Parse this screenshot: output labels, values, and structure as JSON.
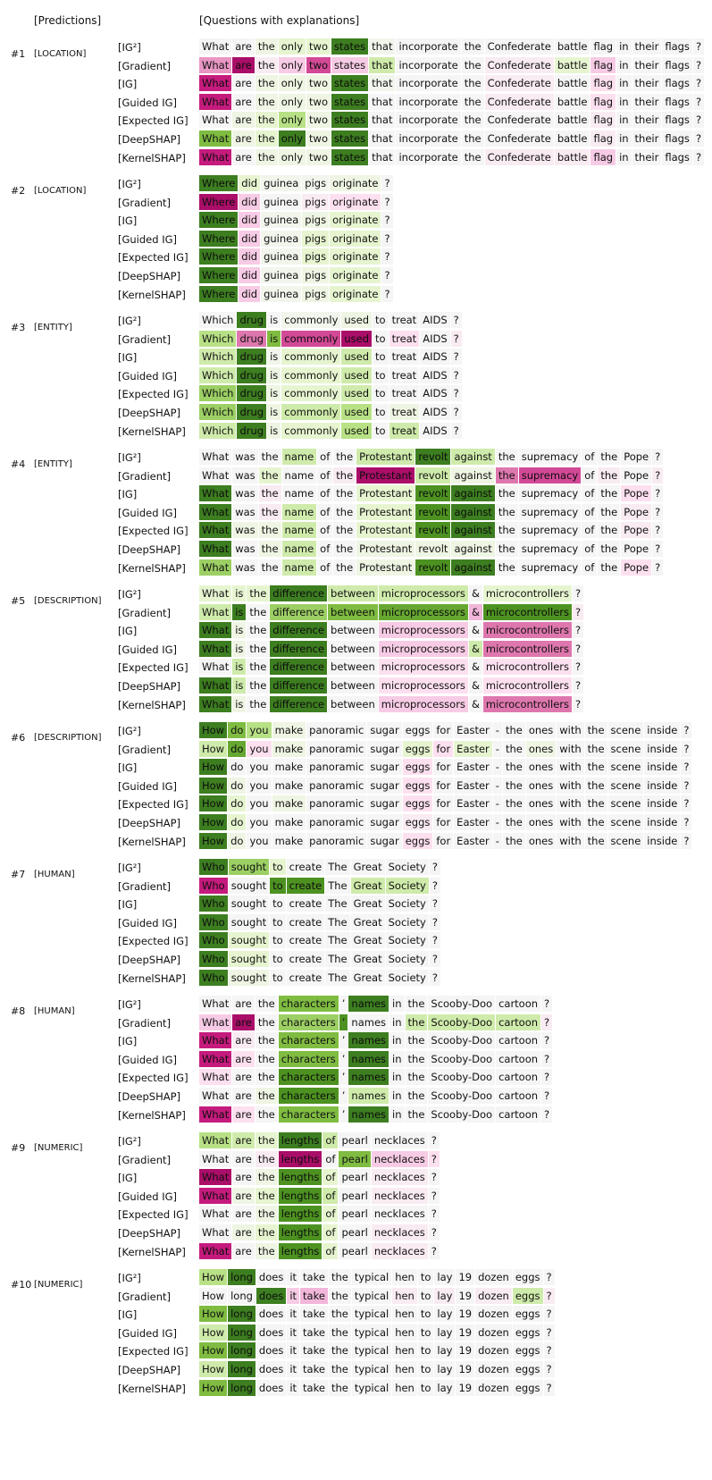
{
  "header": {
    "predictions": "[Predictions]",
    "questions": "[Questions with explanations]"
  },
  "methods": [
    "[IG²]",
    "[Gradient]",
    "[IG]",
    "[Guided IG]",
    "[Expected IG]",
    "[DeepSHAP]",
    "[KernelSHAP]"
  ],
  "legend_colors": {
    "positive": "#2d6a1f",
    "negative": "#a3005a",
    "neutral": "#f5f5f5"
  },
  "blocks": [
    {
      "num": "#1",
      "pred": "[LOCATION]",
      "tokens": [
        "What",
        "are",
        "the",
        "only",
        "two",
        "states",
        "that",
        "incorporate",
        "the",
        "Confederate",
        "battle",
        "flag",
        "in",
        "their",
        "flags",
        "?"
      ],
      "scores": [
        [
          0,
          0,
          0.1,
          0.2,
          0.2,
          0.9,
          0.05,
          0,
          0,
          0,
          0,
          0,
          0,
          0,
          0,
          0
        ],
        [
          -0.5,
          -0.9,
          -0.1,
          -0.3,
          -0.7,
          -0.3,
          0.3,
          0,
          0,
          -0.1,
          0.2,
          -0.3,
          0,
          0,
          0,
          0
        ],
        [
          -0.8,
          0,
          0.1,
          0.1,
          0.1,
          0.9,
          0.05,
          0,
          0,
          -0.1,
          0,
          -0.2,
          0,
          0,
          0,
          0
        ],
        [
          -0.8,
          0,
          0.1,
          0.1,
          0.1,
          0.9,
          0,
          0,
          0,
          -0.1,
          0,
          -0.2,
          0,
          0,
          0,
          0
        ],
        [
          0,
          0.1,
          0.2,
          0.4,
          0.1,
          0.9,
          0,
          0,
          0,
          0,
          0,
          -0.1,
          0,
          0,
          0,
          0
        ],
        [
          0.6,
          0.1,
          0.2,
          0.9,
          0.1,
          0.9,
          0,
          0,
          0,
          0,
          0,
          -0.1,
          0,
          0,
          0,
          0
        ],
        [
          -0.8,
          0,
          0.1,
          0.1,
          0.1,
          0.9,
          0,
          0,
          0,
          -0.1,
          -0.1,
          -0.3,
          0,
          0,
          0,
          0
        ]
      ]
    },
    {
      "num": "#2",
      "pred": "[LOCATION]",
      "tokens": [
        "Where",
        "did",
        "guinea",
        "pigs",
        "originate",
        "?"
      ],
      "scores": [
        [
          0.9,
          0.2,
          0.05,
          0.05,
          0.1,
          0
        ],
        [
          -0.9,
          -0.3,
          0,
          -0.1,
          -0.2,
          0
        ],
        [
          0.9,
          -0.3,
          0.05,
          0.1,
          0.2,
          0
        ],
        [
          0.9,
          -0.3,
          0.05,
          0.2,
          0.2,
          0
        ],
        [
          0.9,
          -0.3,
          0.05,
          0.2,
          0.2,
          0
        ],
        [
          0.9,
          -0.3,
          0.05,
          0.1,
          0.2,
          0
        ],
        [
          0.9,
          -0.3,
          0.05,
          0.1,
          0.2,
          0
        ]
      ]
    },
    {
      "num": "#3",
      "pred": "[ENTITY]",
      "tokens": [
        "Which",
        "drug",
        "is",
        "commonly",
        "used",
        "to",
        "treat",
        "AIDS",
        "?"
      ],
      "scores": [
        [
          0,
          0.9,
          0,
          0.05,
          0.1,
          0,
          0,
          0,
          0
        ],
        [
          0.4,
          -0.6,
          0.6,
          -0.7,
          -0.9,
          0,
          -0.2,
          0,
          -0.1
        ],
        [
          0.3,
          0.9,
          0.05,
          0.2,
          0.3,
          0,
          0,
          0,
          0
        ],
        [
          0.3,
          0.9,
          0.1,
          0.2,
          0.3,
          0,
          0,
          0,
          0
        ],
        [
          0.5,
          0.9,
          0.1,
          0.2,
          0.3,
          0,
          0,
          0,
          0
        ],
        [
          0.5,
          0.9,
          0.1,
          0.3,
          0.4,
          0,
          0.1,
          0,
          0
        ],
        [
          0.3,
          0.9,
          0.1,
          0.2,
          0.4,
          0,
          0.3,
          0,
          0
        ]
      ]
    },
    {
      "num": "#4",
      "pred": "[ENTITY]",
      "tokens": [
        "What",
        "was",
        "the",
        "name",
        "of",
        "the",
        "Protestant",
        "revolt",
        "against",
        "the",
        "supremacy",
        "of",
        "the",
        "Pope",
        "?"
      ],
      "scores": [
        [
          0,
          0,
          0,
          0.3,
          0,
          0,
          0.3,
          0.9,
          0.3,
          0,
          0,
          0,
          0,
          0,
          0
        ],
        [
          0,
          0,
          0.2,
          0,
          0,
          -0.1,
          -0.9,
          0.3,
          0.1,
          -0.6,
          -0.7,
          0,
          -0.1,
          0,
          -0.1
        ],
        [
          0.9,
          0,
          -0.1,
          0,
          0,
          0,
          0.2,
          0.8,
          0.9,
          0,
          0,
          0,
          0,
          -0.2,
          0
        ],
        [
          0.9,
          0,
          -0.1,
          0.3,
          0,
          0,
          0.2,
          0.8,
          0.9,
          0,
          0,
          0,
          0,
          -0.1,
          0
        ],
        [
          0.9,
          0.1,
          0.1,
          0.3,
          0,
          0,
          0.2,
          0.8,
          0.9,
          0,
          0,
          0,
          0,
          -0.1,
          0
        ],
        [
          0.9,
          0,
          0.1,
          0.3,
          0,
          0,
          0.1,
          0.1,
          0.1,
          0,
          0,
          0,
          0,
          0,
          0
        ],
        [
          0.5,
          0,
          0,
          0.3,
          0,
          0,
          0.1,
          0.8,
          0.9,
          0,
          0,
          0,
          0,
          -0.2,
          0
        ]
      ]
    },
    {
      "num": "#5",
      "pred": "[DESCRIPTION]",
      "tokens": [
        "What",
        "is",
        "the",
        "difference",
        "between",
        "microprocessors",
        "&",
        "microcontrollers",
        "?"
      ],
      "scores": [
        [
          0.2,
          0.2,
          0.2,
          0.9,
          0.3,
          0.3,
          0,
          0.2,
          0
        ],
        [
          0.3,
          0.9,
          0,
          0.5,
          0.6,
          0.7,
          -0.4,
          0.8,
          -0.1
        ],
        [
          0.9,
          0.1,
          0,
          0.9,
          0,
          -0.3,
          0,
          -0.6,
          0
        ],
        [
          0.9,
          0.1,
          0,
          0.9,
          0,
          -0.3,
          0.3,
          -0.6,
          0
        ],
        [
          0,
          0.3,
          0,
          0.9,
          0,
          -0.2,
          0,
          -0.2,
          0
        ],
        [
          0.9,
          0.3,
          0,
          0.9,
          0,
          -0.2,
          0,
          -0.2,
          0
        ],
        [
          0.9,
          0.1,
          0,
          0.9,
          0,
          -0.3,
          0,
          -0.6,
          0
        ]
      ]
    },
    {
      "num": "#6",
      "pred": "[DESCRIPTION]",
      "tokens": [
        "How",
        "do",
        "you",
        "make",
        "panoramic",
        "sugar",
        "eggs",
        "for",
        "Easter",
        "-",
        "the",
        "ones",
        "with",
        "the",
        "scene",
        "inside",
        "?"
      ],
      "scores": [
        [
          0.9,
          0.6,
          0.4,
          0.1,
          0,
          0,
          0,
          0,
          0,
          0,
          0,
          0,
          0,
          0,
          0,
          0,
          0
        ],
        [
          0.3,
          0.7,
          -0.2,
          0.1,
          0,
          0,
          0.2,
          -0.2,
          0.2,
          0,
          0,
          0.1,
          0,
          0,
          0,
          0,
          0
        ],
        [
          0.9,
          0,
          0,
          0,
          0,
          0,
          -0.2,
          0,
          0,
          0,
          0,
          0,
          0,
          0,
          0,
          0,
          0
        ],
        [
          0.9,
          0.1,
          0,
          0,
          0,
          0,
          -0.2,
          0,
          0,
          0,
          0,
          0,
          0,
          0,
          0,
          0,
          0
        ],
        [
          0.9,
          0.2,
          0,
          0.1,
          0,
          0,
          -0.2,
          0,
          0,
          0,
          0,
          0,
          0,
          0,
          0,
          0,
          0
        ],
        [
          0.9,
          0.2,
          0,
          0,
          0,
          0,
          -0.1,
          0,
          0,
          0,
          0,
          0,
          0,
          0,
          0,
          0,
          0
        ],
        [
          0.9,
          0.1,
          0,
          0,
          0,
          0,
          -0.2,
          0,
          0,
          0,
          0,
          0,
          0,
          0,
          0,
          0,
          0
        ]
      ]
    },
    {
      "num": "#7",
      "pred": "[HUMAN]",
      "tokens": [
        "Who",
        "sought",
        "to",
        "create",
        "The",
        "Great",
        "Society",
        "?"
      ],
      "scores": [
        [
          0.9,
          0.5,
          0.2,
          0,
          0,
          0,
          0,
          0
        ],
        [
          -0.8,
          0,
          0.8,
          0.8,
          0,
          0.3,
          0.3,
          0
        ],
        [
          0.9,
          0,
          0,
          0,
          0,
          0,
          0,
          0
        ],
        [
          0.9,
          0,
          0,
          0,
          0,
          0,
          0,
          0
        ],
        [
          0.9,
          0.2,
          0,
          0,
          0,
          0,
          0,
          0
        ],
        [
          0.9,
          0.2,
          0,
          0,
          0,
          0,
          0,
          0
        ],
        [
          0.9,
          0.1,
          0,
          0,
          0,
          0,
          0,
          0
        ]
      ]
    },
    {
      "num": "#8",
      "pred": "[HUMAN]",
      "tokens": [
        "What",
        "are",
        "the",
        "characters",
        "’",
        "names",
        "in",
        "the",
        "Scooby-Doo",
        "cartoon",
        "?"
      ],
      "scores": [
        [
          0,
          0,
          0,
          0.6,
          0,
          0.9,
          0,
          0,
          0,
          0,
          0
        ],
        [
          -0.3,
          -0.9,
          0,
          0.5,
          0.8,
          0,
          0,
          0.3,
          0.3,
          0.3,
          -0.1
        ],
        [
          -0.8,
          -0.1,
          0,
          0.6,
          0,
          0.9,
          0,
          0,
          0,
          0,
          0
        ],
        [
          -0.8,
          -0.2,
          0,
          0.6,
          0,
          0.9,
          0,
          0,
          0,
          0,
          0
        ],
        [
          -0.2,
          0,
          0,
          0.8,
          0,
          0.9,
          0,
          0,
          0,
          0,
          0
        ],
        [
          0,
          0,
          0.1,
          0.8,
          0,
          0.3,
          0,
          0,
          0,
          0,
          0
        ],
        [
          -0.8,
          -0.2,
          0,
          0.6,
          0,
          0.9,
          0,
          0,
          0,
          0,
          0
        ]
      ]
    },
    {
      "num": "#9",
      "pred": "[NUMERIC]",
      "tokens": [
        "What",
        "are",
        "the",
        "lengths",
        "of",
        "pearl",
        "necklaces",
        "?"
      ],
      "scores": [
        [
          0.4,
          0.3,
          0.2,
          0.9,
          0.3,
          0,
          0,
          0
        ],
        [
          0,
          0,
          -0.1,
          -0.9,
          0,
          0.6,
          -0.3,
          -0.2
        ],
        [
          -0.9,
          0,
          0.1,
          0.8,
          0.2,
          0,
          -0.1,
          0
        ],
        [
          -0.8,
          0.1,
          0.2,
          0.8,
          0.3,
          0,
          -0.1,
          0
        ],
        [
          0,
          0,
          0.1,
          0.8,
          0.2,
          0,
          0,
          0
        ],
        [
          0,
          0.1,
          0.2,
          0.8,
          0.2,
          0,
          -0.1,
          0
        ],
        [
          -0.8,
          0,
          0.1,
          0.8,
          0.2,
          0,
          -0.1,
          0
        ]
      ]
    },
    {
      "num": "#10",
      "pred": "[NUMERIC]",
      "tokens": [
        "How",
        "long",
        "does",
        "it",
        "take",
        "the",
        "typical",
        "hen",
        "to",
        "lay",
        "19",
        "dozen",
        "eggs",
        "?"
      ],
      "scores": [
        [
          0.4,
          0.9,
          0,
          0,
          0,
          0,
          0,
          0,
          0,
          0,
          0,
          0,
          0,
          0
        ],
        [
          0,
          0,
          0.9,
          -0.3,
          -0.4,
          0,
          0,
          -0.1,
          0,
          -0.1,
          0,
          -0.1,
          0.3,
          -0.1
        ],
        [
          0.6,
          0.9,
          0,
          0,
          0,
          0,
          0,
          0,
          0,
          0,
          0,
          0,
          0,
          0
        ],
        [
          0.3,
          0.9,
          0,
          0,
          0,
          0,
          0,
          0,
          0,
          0,
          0,
          0,
          0,
          0
        ],
        [
          0.6,
          0.9,
          0,
          0,
          0,
          0,
          0,
          0,
          0,
          0,
          0,
          0,
          0,
          0
        ],
        [
          0.3,
          0.9,
          0,
          0,
          0,
          0,
          0,
          0,
          0,
          0,
          0,
          0,
          0,
          0
        ],
        [
          0.6,
          0.9,
          0,
          0,
          0,
          0,
          0,
          0,
          0,
          0,
          0,
          0,
          0,
          0
        ]
      ]
    }
  ]
}
